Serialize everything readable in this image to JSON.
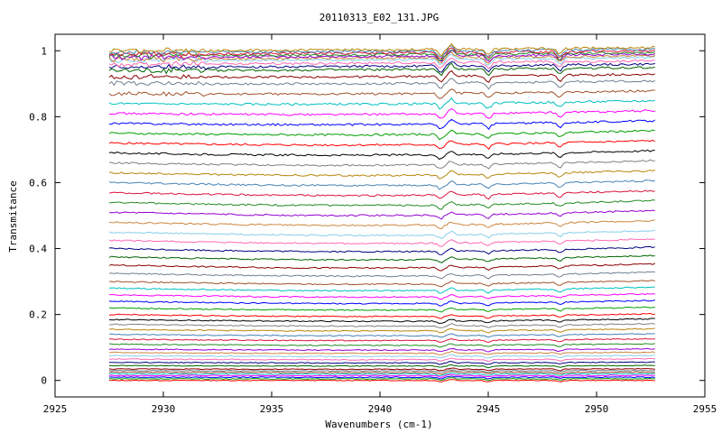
{
  "chart_data": {
    "type": "line",
    "title": "20110313_E02_131.JPG",
    "xlabel": "Wavenumbers (cm-1)",
    "ylabel": "Transmitance",
    "xlim": [
      2925,
      2955
    ],
    "ylim": [
      -0.05,
      1.05
    ],
    "x_ticks": [
      2925,
      2930,
      2935,
      2940,
      2945,
      2950,
      2955
    ],
    "y_ticks": [
      0,
      0.2,
      0.4,
      0.6,
      0.8,
      1
    ],
    "x_tick_labels": [
      "2925",
      "2930",
      "2935",
      "2940",
      "2945",
      "2950",
      "2955"
    ],
    "y_tick_labels": [
      "0",
      "0.2",
      "0.4",
      "0.6",
      "0.8",
      "1"
    ],
    "x_range": [
      2927.5,
      2952.7
    ],
    "grid": false,
    "legend": "none",
    "absorption_bands": [
      2942.8,
      2943.3,
      2945.0,
      2948.3
    ],
    "series_levels": [
      0.0,
      0.005,
      0.01,
      0.015,
      0.02,
      0.025,
      0.03,
      0.035,
      0.045,
      0.055,
      0.065,
      0.075,
      0.085,
      0.095,
      0.11,
      0.125,
      0.14,
      0.155,
      0.17,
      0.185,
      0.2,
      0.22,
      0.24,
      0.26,
      0.28,
      0.3,
      0.325,
      0.35,
      0.375,
      0.4,
      0.425,
      0.45,
      0.48,
      0.51,
      0.54,
      0.57,
      0.6,
      0.63,
      0.66,
      0.69,
      0.72,
      0.75,
      0.78,
      0.81,
      0.84,
      0.87,
      0.9,
      0.92,
      0.94,
      0.95,
      0.96,
      0.97,
      0.975,
      0.98,
      0.985,
      0.99,
      0.995,
      1.0
    ],
    "colors": [
      "#ff0000",
      "#00a000",
      "#0000ff",
      "#ff00ff",
      "#00c0c0",
      "#a0522d",
      "#708090",
      "#8b0000",
      "#006400",
      "#000080",
      "#ff69b4",
      "#87ceeb",
      "#cd853f",
      "#9400d3",
      "#228b22",
      "#dc143c",
      "#4682b4",
      "#b8860b",
      "#808080",
      "#000000"
    ]
  }
}
